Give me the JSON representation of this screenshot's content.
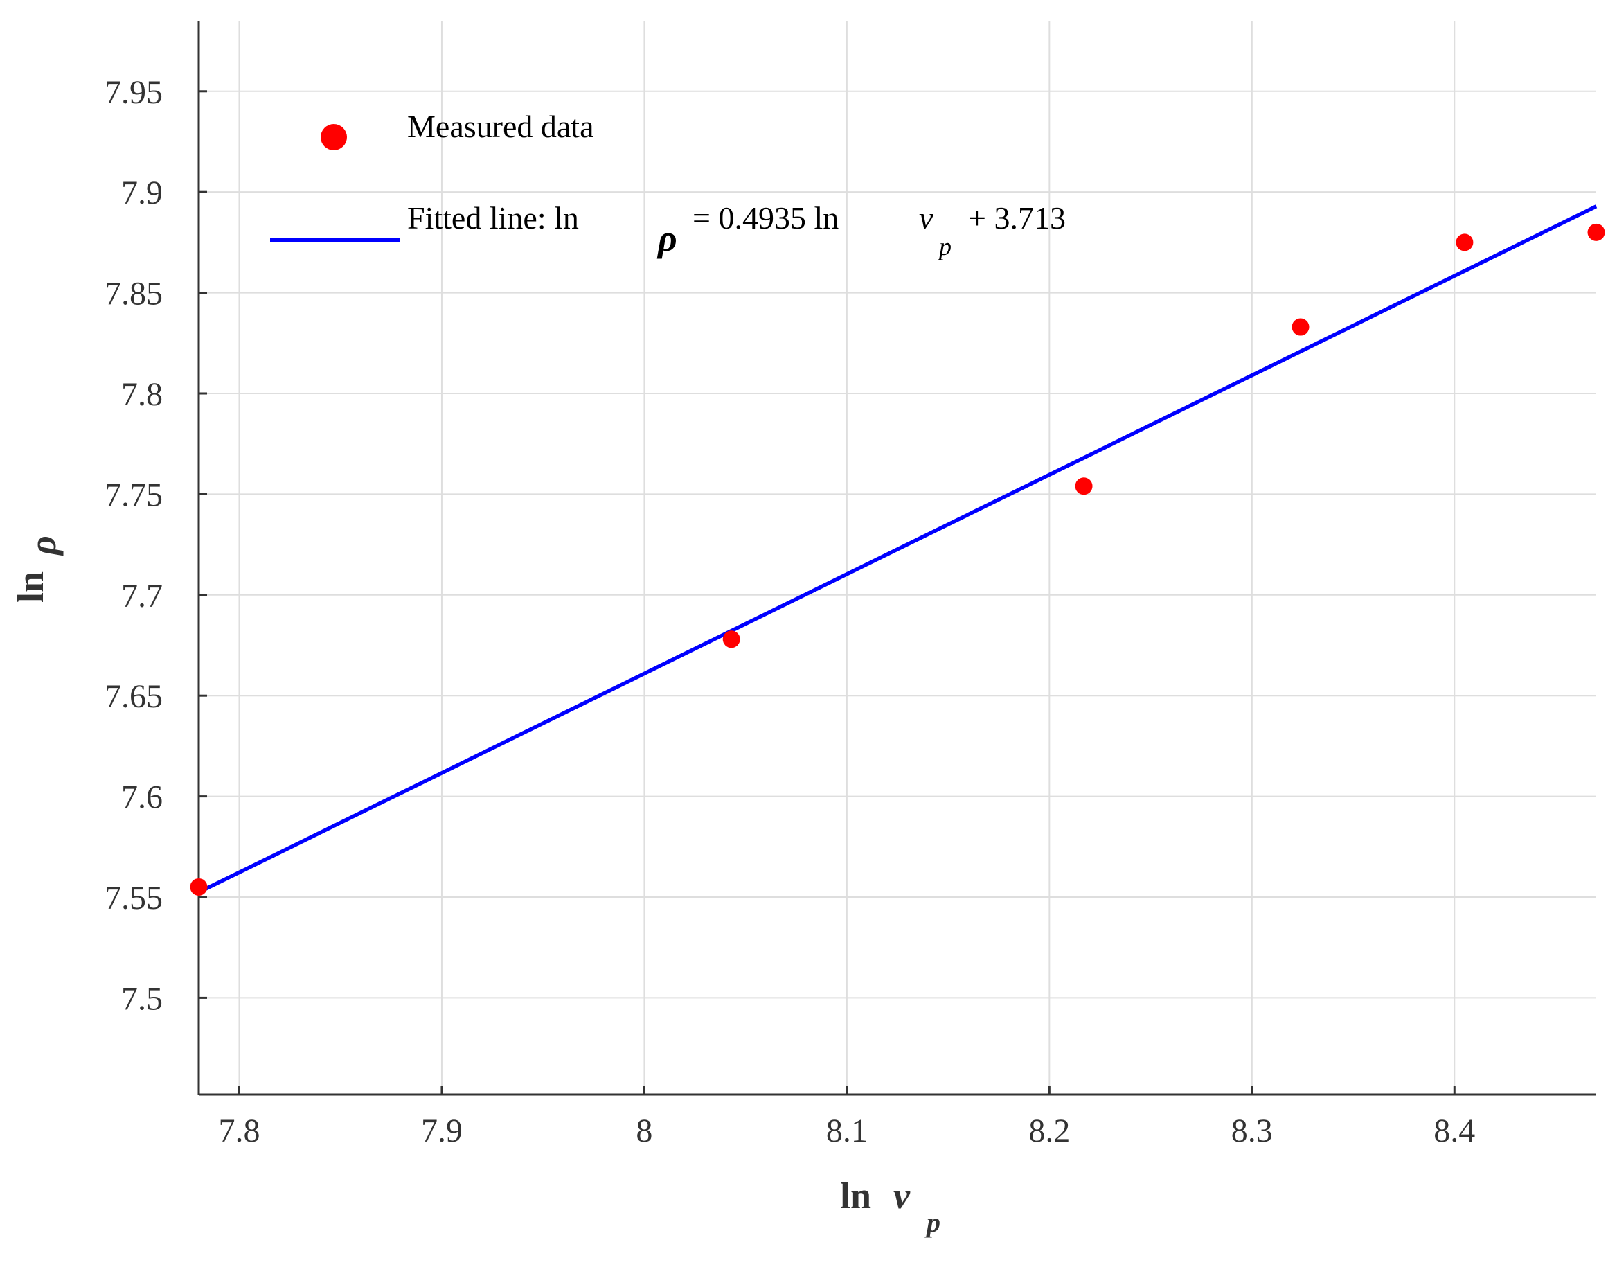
{
  "chart_data": {
    "type": "scatter",
    "xlabel": {
      "prefix": "ln",
      "symbol": "v",
      "subscript": "p"
    },
    "ylabel": {
      "prefix": "ln",
      "symbol": "ρ"
    },
    "xlim": [
      7.78,
      8.47
    ],
    "ylim": [
      7.452,
      7.985
    ],
    "x_ticks": [
      7.8,
      7.9,
      8,
      8.1,
      8.2,
      8.3,
      8.4
    ],
    "x_tick_labels": [
      "7.8",
      "7.9",
      "8",
      "8.1",
      "8.2",
      "8.3",
      "8.4"
    ],
    "y_ticks": [
      7.5,
      7.55,
      7.6,
      7.65,
      7.7,
      7.75,
      7.8,
      7.85,
      7.9,
      7.95
    ],
    "y_tick_labels": [
      "7.5",
      "7.55",
      "7.6",
      "7.65",
      "7.7",
      "7.75",
      "7.8",
      "7.85",
      "7.9",
      "7.95"
    ],
    "grid": true,
    "legend_position": "top-left",
    "series": [
      {
        "name": "Measured data",
        "kind": "scatter",
        "color": "#ff0000",
        "x": [
          7.78,
          8.043,
          8.217,
          8.324,
          8.405,
          8.47
        ],
        "y": [
          7.555,
          7.678,
          7.754,
          7.833,
          7.875,
          7.88
        ]
      },
      {
        "name": "Fitted line",
        "kind": "line",
        "color": "#0000ff",
        "slope": 0.4935,
        "intercept": 3.713,
        "x": [
          7.78,
          8.47
        ],
        "y": [
          7.5524,
          7.8929
        ]
      }
    ],
    "legend": [
      {
        "marker": "dot",
        "text": "Measured data"
      },
      {
        "marker": "line",
        "parts": {
          "a": "Fitted line: ln",
          "rho": "ρ",
          "b": "= 0.4935 ln",
          "v": "v",
          "sub": "p",
          "c": "+ 3.713"
        }
      }
    ]
  }
}
